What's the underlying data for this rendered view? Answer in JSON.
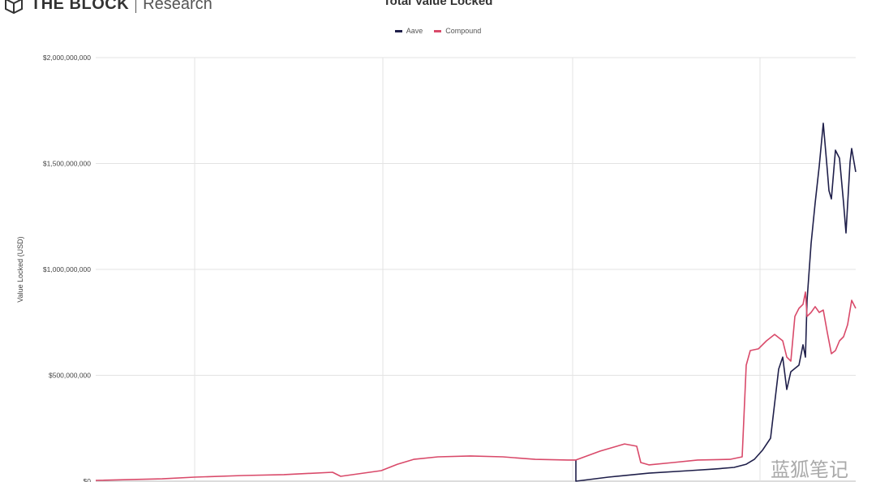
{
  "logo": {
    "brand": "THE BLOCK",
    "sub": "Research"
  },
  "watermark": "蓝狐笔记",
  "chart_data": {
    "type": "line",
    "title": "Total Value Locked",
    "ylabel": "Value Locked (USD)",
    "xlabel": "",
    "ylim": [
      0,
      2000000000
    ],
    "xlim": [
      0,
      937
    ],
    "yticks": [
      0,
      500000000,
      1000000000,
      1500000000,
      2000000000
    ],
    "ytick_labels": [
      "$0",
      "$500,000,000",
      "$1,000,000,000",
      "$1,500,000,000",
      "$2,000,000,000"
    ],
    "xgrid": [
      122,
      354,
      588,
      819
    ],
    "grid": true,
    "legend": "top-center",
    "series": [
      {
        "name": "Aave",
        "color": "#1f1f4a",
        "points": [
          [
            592,
            100000000
          ],
          [
            592,
            0
          ],
          [
            632,
            19000000
          ],
          [
            682,
            38000000
          ],
          [
            732,
            50000000
          ],
          [
            762,
            57000000
          ],
          [
            787,
            65000000
          ],
          [
            802,
            80000000
          ],
          [
            812,
            103000000
          ],
          [
            822,
            146000000
          ],
          [
            832,
            203000000
          ],
          [
            842,
            529000000
          ],
          [
            847,
            586000000
          ],
          [
            852,
            433000000
          ],
          [
            857,
            517000000
          ],
          [
            867,
            548000000
          ],
          [
            872,
            644000000
          ],
          [
            875,
            586000000
          ],
          [
            877,
            854000000
          ],
          [
            882,
            1123000000
          ],
          [
            887,
            1314000000
          ],
          [
            892,
            1487000000
          ],
          [
            897,
            1690000000
          ],
          [
            902,
            1467000000
          ],
          [
            904,
            1372000000
          ],
          [
            907,
            1333000000
          ],
          [
            912,
            1563000000
          ],
          [
            917,
            1525000000
          ],
          [
            922,
            1314000000
          ],
          [
            925,
            1172000000
          ],
          [
            930,
            1506000000
          ],
          [
            932,
            1571000000
          ],
          [
            937,
            1460000000
          ]
        ]
      },
      {
        "name": "Compound",
        "color": "#d94a6a",
        "points": [
          [
            0,
            4000000
          ],
          [
            82,
            11000000
          ],
          [
            122,
            19000000
          ],
          [
            182,
            27000000
          ],
          [
            232,
            31000000
          ],
          [
            292,
            42000000
          ],
          [
            302,
            23000000
          ],
          [
            352,
            50000000
          ],
          [
            372,
            80000000
          ],
          [
            392,
            103000000
          ],
          [
            422,
            115000000
          ],
          [
            462,
            119000000
          ],
          [
            502,
            115000000
          ],
          [
            542,
            103000000
          ],
          [
            582,
            100000000
          ],
          [
            592,
            100000000
          ],
          [
            622,
            142000000
          ],
          [
            652,
            176000000
          ],
          [
            667,
            165000000
          ],
          [
            672,
            88000000
          ],
          [
            682,
            77000000
          ],
          [
            712,
            88000000
          ],
          [
            742,
            100000000
          ],
          [
            782,
            103000000
          ],
          [
            797,
            115000000
          ],
          [
            802,
            548000000
          ],
          [
            807,
            617000000
          ],
          [
            817,
            625000000
          ],
          [
            827,
            663000000
          ],
          [
            837,
            693000000
          ],
          [
            847,
            663000000
          ],
          [
            852,
            586000000
          ],
          [
            857,
            567000000
          ],
          [
            862,
            778000000
          ],
          [
            867,
            816000000
          ],
          [
            872,
            835000000
          ],
          [
            875,
            893000000
          ],
          [
            877,
            778000000
          ],
          [
            882,
            797000000
          ],
          [
            887,
            824000000
          ],
          [
            892,
            797000000
          ],
          [
            897,
            808000000
          ],
          [
            902,
            701000000
          ],
          [
            907,
            602000000
          ],
          [
            912,
            617000000
          ],
          [
            917,
            663000000
          ],
          [
            922,
            682000000
          ],
          [
            927,
            739000000
          ],
          [
            932,
            854000000
          ],
          [
            937,
            816000000
          ]
        ]
      }
    ]
  }
}
